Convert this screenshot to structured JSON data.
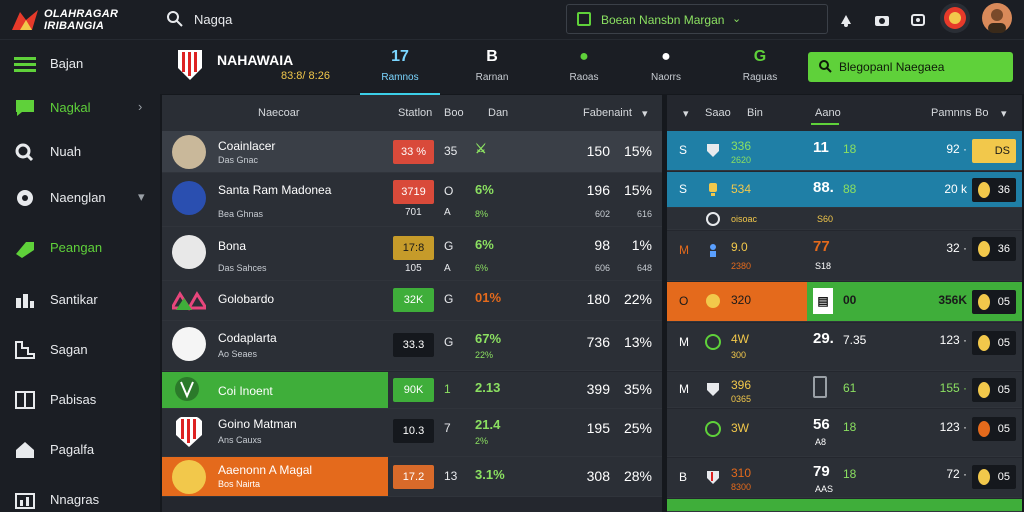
{
  "brand": {
    "line1": "OLAHRAGAR",
    "line2": "IRIBANGIA"
  },
  "search": {
    "value": "Nagqa"
  },
  "top_select": {
    "label": "Boean Nansbn Margan"
  },
  "sidebar": {
    "items": [
      {
        "label": "Bajan",
        "icon": "menu-icon"
      },
      {
        "label": "Nagkal",
        "icon": "chat-icon"
      },
      {
        "label": "Nuah",
        "icon": "search-icon"
      },
      {
        "label": "Naenglan",
        "icon": "globe-icon"
      },
      {
        "label": "Peangan",
        "icon": "tag-icon"
      },
      {
        "label": "Santikar",
        "icon": "chart-icon"
      },
      {
        "label": "Sagan",
        "icon": "stairs-icon"
      },
      {
        "label": "Pabisas",
        "icon": "grid-icon"
      },
      {
        "label": "Pagalfa",
        "icon": "home-icon"
      },
      {
        "label": "Nnagras",
        "icon": "bar-icon"
      }
    ]
  },
  "header": {
    "team": "NAHAWAIA",
    "score": "83:8/ 8:26",
    "tabs": [
      {
        "num": "17",
        "label": "Ramnos"
      },
      {
        "num": "B",
        "label": "Rarnan"
      },
      {
        "num": "",
        "label": "Raoas"
      },
      {
        "num": "",
        "label": "Naorrs"
      },
      {
        "num": "G",
        "label": "Raguas"
      }
    ],
    "cta": "Blegopanl Naegaea"
  },
  "left_table": {
    "headers": {
      "name": "Naecoar",
      "a": "Statlon",
      "b": "Boo",
      "c": "Dan",
      "d": "Fabenaint"
    },
    "rows": [
      {
        "name": "Coainlacer",
        "sub": "Das Gnac",
        "badge": "33 %",
        "badge_style": "b-red",
        "sm": "35",
        "val": "",
        "num": "150",
        "pct": "15%",
        "numsub": "",
        "pctsub": "",
        "style": "light"
      },
      {
        "name": "Santa Ram Madonea",
        "sub": "Bea Ghnas",
        "badge": "3719",
        "badge_style": "b-red",
        "sm": "O",
        "val": "6%",
        "valsub": "8%",
        "num": "196",
        "pct": "15%",
        "badgesub": "701",
        "smsub": "A",
        "numsub": "602",
        "pctsub": "616",
        "style": "dark"
      },
      {
        "name": "Bona",
        "sub": "Das Sahces",
        "badge": "17:8",
        "badge_style": "b-yellow",
        "sm": "G",
        "val": "6%",
        "valsub": "6%",
        "num": "98",
        "pct": "1%",
        "badgesub": "105",
        "smsub": "A",
        "numsub": "606",
        "pctsub": "648",
        "style": "dark"
      },
      {
        "name": "Golobardo",
        "sub": "",
        "badge": "32K",
        "badge_style": "b-green",
        "sm": "G",
        "val": "01%",
        "valsub": "",
        "num": "180",
        "pct": "22%",
        "numsub": "",
        "pctsub": "",
        "style": "dark"
      },
      {
        "name": "Codaplarta",
        "sub": "Ao Seaes",
        "badge": "33.3",
        "badge_style": "b-dark",
        "sm": "G",
        "val": "67%",
        "valsub": "22%",
        "num": "736",
        "pct": "13%",
        "numsub": "",
        "pctsub": "",
        "style": "dark"
      },
      {
        "name": "Coi Inoent",
        "sub": "",
        "badge": "90K",
        "badge_style": "b-green",
        "sm": "1",
        "val": "2.13",
        "valsub": "",
        "num": "399",
        "pct": "35%",
        "numsub": "",
        "pctsub": "",
        "style": "green"
      },
      {
        "name": "Goino Matman",
        "sub": "Ans Cauxs",
        "badge": "10.3",
        "badge_style": "b-dark",
        "sm": "7",
        "val": "21.4",
        "valsub": "2%",
        "num": "195",
        "pct": "25%",
        "numsub": "",
        "pctsub": "",
        "style": "dark"
      },
      {
        "name": "Aaenonn A Magal",
        "sub": "Bos Nairta",
        "badge": "17.2",
        "badge_style": "b-orange",
        "sm": "13",
        "val": "3.1%",
        "valsub": "",
        "num": "308",
        "pct": "28%",
        "numsub": "",
        "pctsub": "",
        "style": "orange"
      }
    ]
  },
  "right_table": {
    "headers": {
      "a": "Saao",
      "b": "Bin",
      "c": "Aano",
      "d": "Pamnns",
      "e": "Bo"
    },
    "rows": [
      {
        "a": "S",
        "b": "336",
        "bsub": "2620",
        "c": "11",
        "d": "18",
        "e": "92 ·",
        "chip": "DS",
        "chip_dot": "#f2c84b",
        "style": "blue"
      },
      {
        "a": "S",
        "b": "534",
        "bsub": "oisoac",
        "c": "88.",
        "d": "88",
        "e": "20 k",
        "chip": "36",
        "chip_dot": "#f2c84b",
        "style": "blue",
        "sub2": "S60"
      },
      {
        "a": "M",
        "b": "9.0",
        "bsub": "2380",
        "c": "77",
        "d": "",
        "e": "32 ·",
        "chip": "36",
        "chip_dot": "#f2c84b",
        "style": "dark",
        "csub": "S18"
      },
      {
        "a": "O",
        "b": "320",
        "bsub": "",
        "c": "",
        "d": "00",
        "e": "356K",
        "chip": "05",
        "chip_dot": "#f2c84b",
        "style": "orange"
      },
      {
        "a": "M",
        "b": "4W",
        "bsub": "300",
        "c": "29.",
        "d": "7.35",
        "e": "123 ·",
        "chip": "05",
        "chip_dot": "#f2c84b",
        "style": "dark"
      },
      {
        "a": "M",
        "b": "396",
        "bsub": "0365",
        "c": "",
        "d": "61",
        "e": "155 ·",
        "chip": "05",
        "chip_dot": "#f2c84b",
        "style": "dark"
      },
      {
        "a": "",
        "b": "3W",
        "bsub": "",
        "c": "56",
        "d": "18",
        "e": "123 ·",
        "chip": "05",
        "chip_dot": "#f2c84b",
        "style": "dark",
        "csub": "A8"
      },
      {
        "a": "B",
        "b": "310",
        "bsub": "8300",
        "c": "79",
        "d": "18",
        "e": "72 ·",
        "chip": "05",
        "chip_dot": "#f2c84b",
        "style": "dark",
        "csub": "AAS"
      }
    ]
  }
}
